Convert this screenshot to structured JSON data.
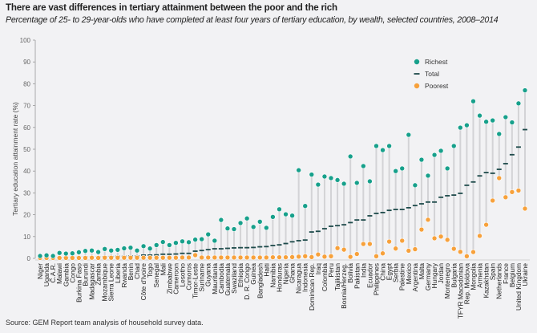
{
  "chart_data": {
    "type": "dot-range",
    "title": "There are vast differences in tertiary attainment between the poor and the rich",
    "subtitle": "Percentage of 25- to 29-year-olds who have completed at least four years of tertiary education, by wealth, selected countries, 2008–2014",
    "xlabel": "",
    "ylabel": "Tertiary education attainment rate (%)",
    "ylim": [
      0,
      100
    ],
    "yticks": [
      0,
      10,
      20,
      30,
      40,
      50,
      60,
      70,
      80,
      90,
      100
    ],
    "grid": false,
    "legend_position": "top-right",
    "categories": [
      "Niger",
      "Uganda",
      "C.A.R.",
      "Malawi",
      "Gambia",
      "Congo",
      "Burkina Faso",
      "Burundi",
      "Madagascar",
      "Zambia",
      "Mozambique",
      "Sierra Leone",
      "Liberia",
      "Rwanda",
      "Benin",
      "Chad",
      "Côte d'Ivoire",
      "Togo",
      "Senegal",
      "Mali",
      "Zimbabwe",
      "Cameroon",
      "Lesotho",
      "Comoros",
      "Timor-Leste",
      "Suriname",
      "Guyana",
      "Mauritania",
      "Cambodia",
      "Guatemala",
      "Swaziland",
      "Ethiopia",
      "D. R. Congo",
      "Guinea",
      "Bangladesh",
      "Haiti",
      "Namibia",
      "Honduras",
      "Nigeria",
      "Ghana",
      "Nicaragua",
      "Indonesia",
      "Dominican Rep.",
      "Iraq",
      "Colombia",
      "Peru",
      "Tajikistan",
      "Bosnia/Herzeg.",
      "Bolivia",
      "Pakistan",
      "India",
      "Ecuador",
      "Philippines",
      "China",
      "Egypt",
      "Serbia",
      "Palestine",
      "Mexico",
      "Argentina",
      "Malta",
      "Germany",
      "Hungary",
      "Jordan",
      "Montenegro",
      "Bulgaria",
      "TFYR Macedonian",
      "Rep. Moldova",
      "Mongolia",
      "Armenia",
      "Kazakhstan",
      "Spain",
      "Netherlands",
      "France",
      "Belgium",
      "United Kingdom",
      "Ukraine"
    ],
    "series": [
      {
        "name": "Richest",
        "color": "#17a08b",
        "marker": "circle",
        "values": [
          1.1,
          1.4,
          1.1,
          2.5,
          2.2,
          2.3,
          2.8,
          3.4,
          3.6,
          2.9,
          4.3,
          3.6,
          3.9,
          4.6,
          4.9,
          3.6,
          5.6,
          4.5,
          6.1,
          7.5,
          6.1,
          7.1,
          7.8,
          7.4,
          8.6,
          8.8,
          11,
          8.1,
          17.6,
          13.7,
          13.4,
          16.2,
          18.3,
          14.4,
          16.8,
          14,
          19,
          22.5,
          20.2,
          19.6,
          40.4,
          24,
          38.4,
          33.8,
          37.5,
          36.8,
          35.9,
          34.2,
          46.7,
          34.6,
          42.3,
          35.3,
          51.5,
          49.6,
          51.5,
          40,
          41.2,
          56.6,
          33.5,
          45.2,
          37.9,
          47.4,
          49.3,
          41.2,
          51.5,
          59.9,
          61,
          72,
          65.4,
          62.6,
          63.2,
          57,
          64.7,
          62.3,
          71,
          77
        ]
      },
      {
        "name": "Total",
        "color": "#1e4b4b",
        "marker": "dash",
        "values": [
          0.2,
          0.3,
          0.3,
          0.4,
          0.4,
          0.5,
          0.5,
          0.6,
          0.6,
          0.6,
          0.7,
          0.8,
          0.9,
          0.9,
          1.0,
          1.0,
          1.5,
          1.5,
          1.6,
          1.9,
          1.9,
          2.0,
          2.3,
          2.3,
          3.3,
          3.6,
          4.0,
          4.4,
          4.4,
          4.6,
          4.8,
          4.9,
          4.9,
          5.0,
          5.3,
          5.4,
          5.9,
          6.2,
          6.8,
          7.6,
          8.1,
          8.4,
          12.1,
          12.4,
          13.6,
          14.7,
          15,
          15.4,
          16.4,
          17.6,
          17.6,
          19.5,
          20.6,
          21,
          22,
          22.4,
          22.4,
          23.2,
          24.2,
          25,
          25.8,
          25.8,
          28,
          28.7,
          29,
          29.8,
          33.5,
          35,
          37.8,
          39.3,
          39,
          40.8,
          43.4,
          47.5,
          51,
          59
        ]
      },
      {
        "name": "Poorest",
        "color": "#f7a13b",
        "marker": "circle",
        "values": [
          0.2,
          0.2,
          0.2,
          0.2,
          0.2,
          0.2,
          0.2,
          0.2,
          0.3,
          0.2,
          0.3,
          0.3,
          0.3,
          0.3,
          0.3,
          0.3,
          0.3,
          0.3,
          0.3,
          0.3,
          0.3,
          0.3,
          0.4,
          0.4,
          1.5,
          0.4,
          0.4,
          0.4,
          0.4,
          0.4,
          0.4,
          0.4,
          0.4,
          0.4,
          0.4,
          0.4,
          0.5,
          0.5,
          0.5,
          0.6,
          0.8,
          1.0,
          0.6,
          1.8,
          0.8,
          1.0,
          4.7,
          4.0,
          0.7,
          2.0,
          6.6,
          6.6,
          1.0,
          2.3,
          7.7,
          4.5,
          8.1,
          3.5,
          4.2,
          13.2,
          17.7,
          9.2,
          10,
          8.5,
          4.4,
          3,
          1,
          2.9,
          10.3,
          15.4,
          26.5,
          36.8,
          28,
          30.4,
          31.1,
          22.8
        ]
      }
    ]
  },
  "source": "Source: GEM Report team analysis of household survey data."
}
